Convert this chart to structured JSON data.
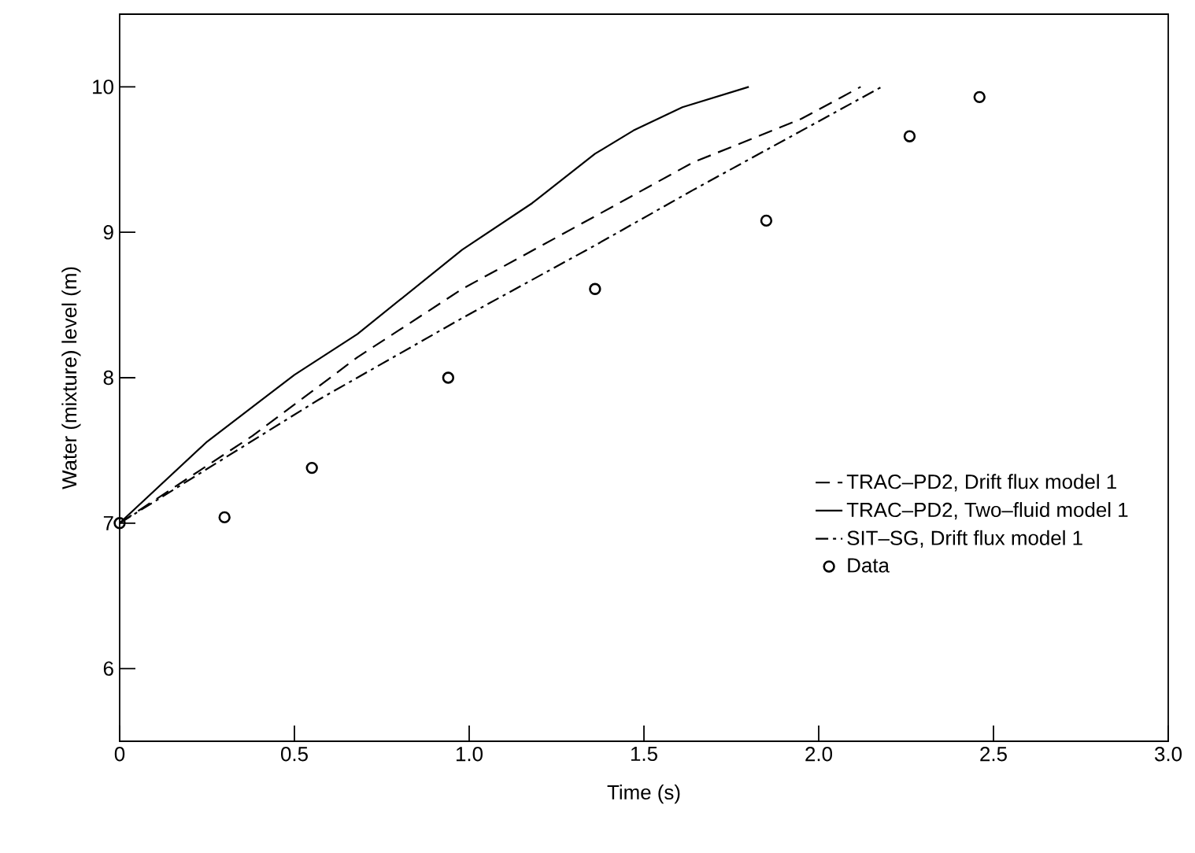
{
  "chart_data": {
    "type": "line",
    "xlabel": "Time (s)",
    "ylabel": "Water (mixture) level (m)",
    "xlim": [
      0,
      3
    ],
    "ylim": [
      5.5,
      10.5
    ],
    "xticks": [
      0,
      0.5,
      {
        "value": 1,
        "label": "1.0"
      },
      1.5,
      {
        "value": 2,
        "label": "2.0"
      },
      2.5,
      {
        "value": 3,
        "label": "3.0"
      }
    ],
    "yticks": [
      6,
      7,
      8,
      9,
      10
    ],
    "grid": false,
    "legend": "bottom right",
    "series": [
      {
        "name": "TRAC–PD2, Drift flux model 1",
        "color": "#000000",
        "line_style": "dashed",
        "marker": "none",
        "x": [
          0,
          0.38,
          0.68,
          0.98,
          1.36,
          1.64,
          1.95,
          2.12
        ],
        "values": [
          7.0,
          7.6,
          8.14,
          8.61,
          9.11,
          9.48,
          9.78,
          10.0
        ]
      },
      {
        "name": "TRAC–PD2, Two–fluid model 1",
        "color": "#000000",
        "line_style": "solid",
        "marker": "none",
        "x": [
          0,
          0.25,
          0.5,
          0.68,
          0.98,
          1.18,
          1.36,
          1.47,
          1.61,
          1.8
        ],
        "values": [
          7.0,
          7.56,
          8.02,
          8.3,
          8.88,
          9.2,
          9.54,
          9.7,
          9.86,
          10.0
        ]
      },
      {
        "name": "SIT–SG, Drift flux model 1",
        "color": "#000000",
        "line_style": "dashdot",
        "marker": "none",
        "x": [
          0,
          0.57,
          0.98,
          1.36,
          1.64,
          2.18
        ],
        "values": [
          7.0,
          7.85,
          8.41,
          8.91,
          9.29,
          10.0
        ]
      },
      {
        "name": "Data",
        "type": "scatter",
        "color": "#000000",
        "marker": "circle",
        "x": [
          0,
          0.3,
          0.55,
          0.94,
          1.36,
          1.85,
          2.26,
          2.46
        ],
        "values": [
          7.0,
          7.04,
          7.38,
          8.0,
          8.61,
          9.08,
          9.66,
          9.93
        ]
      }
    ]
  }
}
